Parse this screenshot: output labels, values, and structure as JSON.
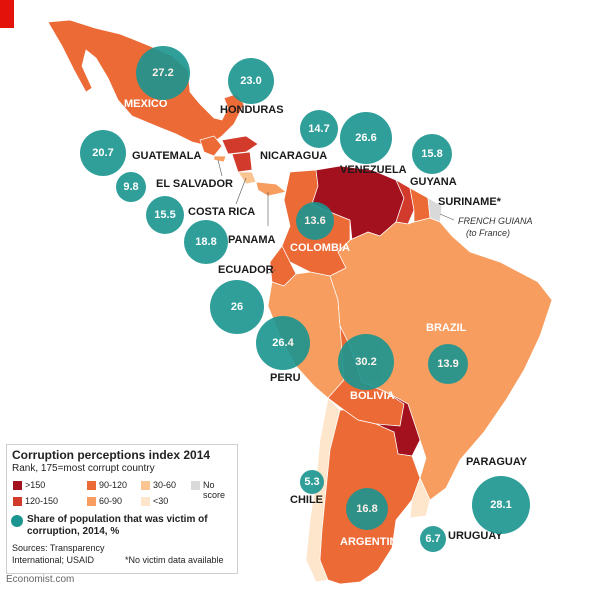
{
  "map": {
    "colors": {
      "gt150": "#a3111f",
      "r120_150": "#d23a2b",
      "r90_120": "#ec6a36",
      "r60_90": "#f79d5f",
      "r30_60": "#fbc592",
      "lt30": "#fde6cc",
      "no_score": "#d9d9d9",
      "bubble": "#1a9590"
    },
    "countries": {
      "mexico": "MEXICO",
      "honduras": "HONDURAS",
      "nicaragua": "NICARAGUA",
      "guatemala": "GUATEMALA",
      "el_salvador": "EL SALVADOR",
      "costa_rica": "COSTA RICA",
      "panama": "PANAMA",
      "venezuela": "VENEZUELA",
      "guyana": "GUYANA",
      "suriname": "SURINAME*",
      "french_guiana": "FRENCH GUIANA",
      "french_guiana_note": "(to France)",
      "colombia": "COLOMBIA",
      "ecuador": "ECUADOR",
      "brazil": "BRAZIL",
      "peru": "PERU",
      "bolivia": "BOLIVIA",
      "paraguay": "PARAGUAY",
      "chile": "CHILE",
      "argentina": "ARGENTINA",
      "uruguay": "URUGUAY"
    },
    "victim_share": {
      "mexico": "27.2",
      "honduras": "23.0",
      "nicaragua": "14.7",
      "guatemala": "20.7",
      "el_salvador": "9.8",
      "costa_rica": "15.5",
      "panama": "18.8",
      "venezuela": "26.6",
      "guyana": "15.8",
      "colombia": "13.6",
      "ecuador": "26",
      "peru": "26.4",
      "bolivia": "30.2",
      "brazil": "13.9",
      "chile": "5.3",
      "argentina": "16.8",
      "paraguay": "28.1",
      "uruguay": "6.7"
    }
  },
  "legend": {
    "title": "Corruption perceptions index 2014",
    "subtitle": "Rank, 175=most corrupt country",
    "gt150": ">150",
    "r90_120": "90-120",
    "r30_60": "30-60",
    "no_score": "No score",
    "r120_150": "120-150",
    "r60_90": "60-90",
    "lt30": "<30",
    "share_line1": "Share of population that was victim of",
    "share_line2": "corruption, 2014, %",
    "sources_line1": "Sources: Transparency",
    "sources_line2": "International; USAID",
    "note": "*No victim data available"
  },
  "credit": "Economist.com"
}
